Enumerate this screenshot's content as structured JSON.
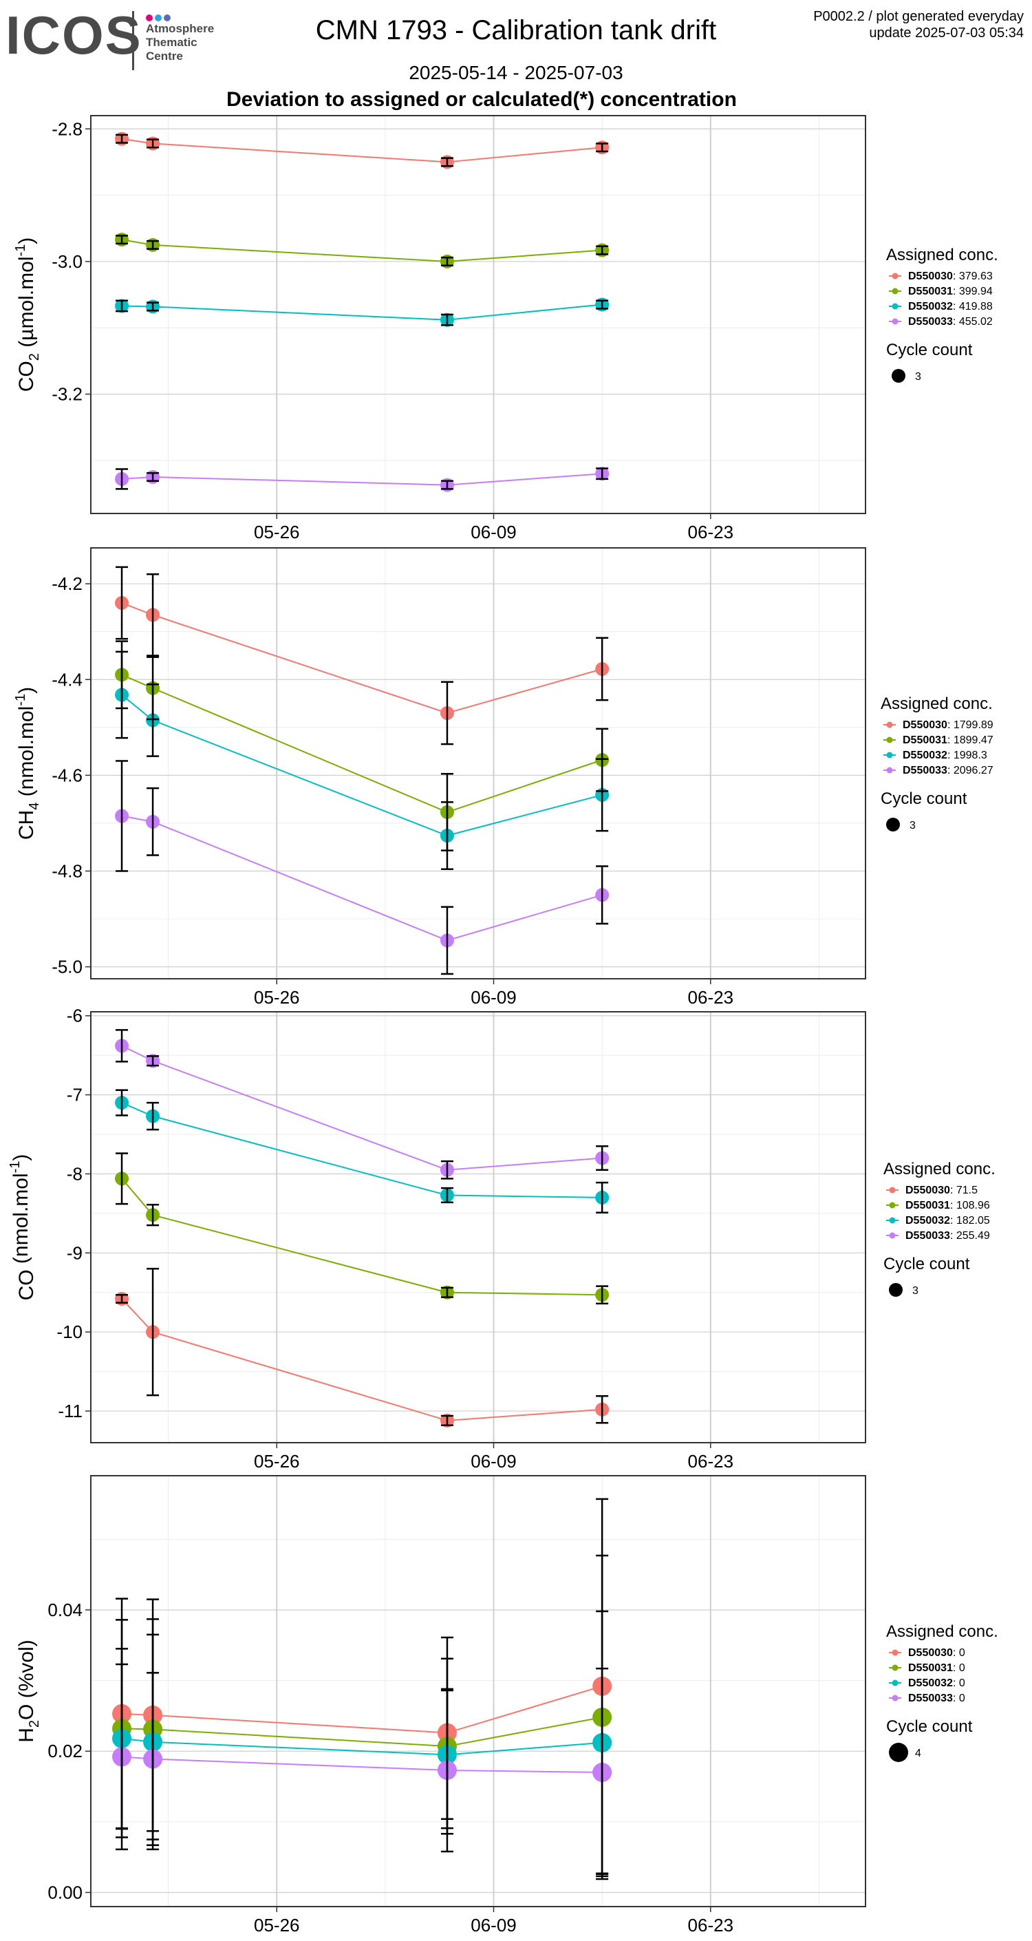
{
  "logo": {
    "name": "ICOS",
    "dots": [
      "#e5007e",
      "#26a6e0",
      "#5a6bb8"
    ],
    "lines": [
      "Atmosphere",
      "Thematic",
      "Centre"
    ]
  },
  "title": "CMN 1793 - Calibration tank drift",
  "subtitle": "2025-05-14 - 2025-07-03",
  "heading": "Deviation to assigned or calculated(*) concentration",
  "meta": {
    "line1": "P0002.2 / plot generated everyday",
    "line2": "update  2025-07-03 05:34"
  },
  "colors": {
    "D550030": "#f8766d",
    "D550031": "#7cae00",
    "D550032": "#00bfc4",
    "D550033": "#c77cff",
    "errorbar": "#000000",
    "grid_major": "#cfcfcf",
    "grid_minor": "#ececec"
  },
  "chart_data": [
    {
      "type": "line",
      "ylabel_main": "CO",
      "ylabel_sub": "2",
      "ylabel_rest": " (µmol.mol",
      "ylabel_sup": "-1",
      "ylabel_end": ")",
      "x": [
        "2025-05-16",
        "2025-05-18",
        "2025-06-06",
        "2025-06-16"
      ],
      "xlim": [
        "2025-05-14",
        "2025-07-03"
      ],
      "x_ticks": [
        "05-26",
        "06-09",
        "06-23"
      ],
      "x_tick_dates": [
        "2025-05-26",
        "2025-06-09",
        "2025-06-23"
      ],
      "ylim": [
        -3.38,
        -2.78
      ],
      "y_ticks": [
        -2.8,
        -3.0,
        -3.2
      ],
      "y_tick_labels": [
        "-2.8",
        "-3.0",
        "-3.2"
      ],
      "point_size": 3,
      "series": [
        {
          "name": "D550030",
          "conc": "379.63",
          "values": [
            -2.815,
            -2.822,
            -2.85,
            -2.828
          ],
          "err": [
            0.006,
            0.006,
            0.006,
            0.006
          ]
        },
        {
          "name": "D550031",
          "conc": "399.94",
          "values": [
            -2.967,
            -2.975,
            -3.0,
            -2.983
          ],
          "err": [
            0.006,
            0.006,
            0.006,
            0.006
          ]
        },
        {
          "name": "D550032",
          "conc": "419.88",
          "values": [
            -3.067,
            -3.068,
            -3.088,
            -3.065
          ],
          "err": [
            0.008,
            0.006,
            0.008,
            0.006
          ]
        },
        {
          "name": "D550033",
          "conc": "455.02",
          "values": [
            -3.328,
            -3.325,
            -3.337,
            -3.32
          ],
          "err": [
            0.015,
            0.006,
            0.006,
            0.008
          ]
        }
      ],
      "legend_title": "Assigned conc.",
      "size_title": "Cycle count",
      "size_label": "3"
    },
    {
      "type": "line",
      "ylabel_main": "CH",
      "ylabel_sub": "4",
      "ylabel_rest": " (nmol.mol",
      "ylabel_sup": "-1",
      "ylabel_end": ")",
      "x": [
        "2025-05-16",
        "2025-05-18",
        "2025-06-06",
        "2025-06-16"
      ],
      "xlim": [
        "2025-05-14",
        "2025-07-03"
      ],
      "x_ticks": [
        "05-26",
        "06-09",
        "06-23"
      ],
      "x_tick_dates": [
        "2025-05-26",
        "2025-06-09",
        "2025-06-23"
      ],
      "ylim": [
        -5.025,
        -4.125
      ],
      "y_ticks": [
        -4.2,
        -4.4,
        -4.6,
        -4.8,
        -5.0
      ],
      "y_tick_labels": [
        "-4.2",
        "-4.4",
        "-4.6",
        "-4.8",
        "-5.0"
      ],
      "point_size": 3,
      "series": [
        {
          "name": "D550030",
          "conc": "1799.89",
          "values": [
            -4.24,
            -4.265,
            -4.47,
            -4.378
          ],
          "err": [
            0.075,
            0.085,
            0.065,
            0.065
          ]
        },
        {
          "name": "D550031",
          "conc": "1899.47",
          "values": [
            -4.39,
            -4.418,
            -4.677,
            -4.568
          ],
          "err": [
            0.07,
            0.065,
            0.08,
            0.065
          ]
        },
        {
          "name": "D550032",
          "conc": "1998.3",
          "values": [
            -4.432,
            -4.485,
            -4.726,
            -4.641
          ],
          "err": [
            0.09,
            0.075,
            0.07,
            0.075
          ]
        },
        {
          "name": "D550033",
          "conc": "2096.27",
          "values": [
            -4.685,
            -4.697,
            -4.945,
            -4.85
          ],
          "err": [
            0.115,
            0.07,
            0.07,
            0.06
          ]
        }
      ],
      "legend_title": "Assigned conc.",
      "size_title": "Cycle count",
      "size_label": "3"
    },
    {
      "type": "line",
      "ylabel_main": "CO",
      "ylabel_sub": "",
      "ylabel_rest": " (nmol.mol",
      "ylabel_sup": "-1",
      "ylabel_end": ")",
      "x": [
        "2025-05-16",
        "2025-05-18",
        "2025-06-06",
        "2025-06-16"
      ],
      "xlim": [
        "2025-05-14",
        "2025-07-03"
      ],
      "x_ticks": [
        "05-26",
        "06-09",
        "06-23"
      ],
      "x_tick_dates": [
        "2025-05-26",
        "2025-06-09",
        "2025-06-23"
      ],
      "ylim": [
        -11.4,
        -5.95
      ],
      "y_ticks": [
        -6,
        -7,
        -8,
        -9,
        -10,
        -11
      ],
      "y_tick_labels": [
        "-6",
        "-7",
        "-8",
        "-9",
        "-10",
        "-11"
      ],
      "point_size": 3,
      "series": [
        {
          "name": "D550030",
          "conc": "71.5",
          "values": [
            -9.58,
            -10.0,
            -11.12,
            -10.98
          ],
          "err": [
            0.05,
            0.8,
            0.06,
            0.17
          ]
        },
        {
          "name": "D550031",
          "conc": "108.96",
          "values": [
            -8.06,
            -8.52,
            -9.5,
            -9.53
          ],
          "err": [
            0.32,
            0.13,
            0.06,
            0.11
          ]
        },
        {
          "name": "D550032",
          "conc": "182.05",
          "values": [
            -7.1,
            -7.27,
            -8.27,
            -8.3
          ],
          "err": [
            0.16,
            0.17,
            0.09,
            0.19
          ]
        },
        {
          "name": "D550033",
          "conc": "255.49",
          "values": [
            -6.38,
            -6.57,
            -7.95,
            -7.8
          ],
          "err": [
            0.2,
            0.06,
            0.11,
            0.15
          ]
        }
      ],
      "legend_title": "Assigned conc.",
      "size_title": "Cycle count",
      "size_label": "3"
    },
    {
      "type": "line",
      "ylabel_main": "H",
      "ylabel_sub": "2",
      "ylabel_rest": "O (%vol)",
      "ylabel_sup": "",
      "ylabel_end": "",
      "x": [
        "2025-05-16",
        "2025-05-18",
        "2025-06-06",
        "2025-06-16"
      ],
      "xlim": [
        "2025-05-14",
        "2025-07-03"
      ],
      "x_ticks": [
        "05-26",
        "06-09",
        "06-23"
      ],
      "x_tick_dates": [
        "2025-05-26",
        "2025-06-09",
        "2025-06-23"
      ],
      "ylim": [
        -0.002,
        0.059
      ],
      "y_ticks": [
        0.0,
        0.02,
        0.04
      ],
      "y_tick_labels": [
        "0.00",
        "0.02",
        "0.04"
      ],
      "point_size": 4,
      "series": [
        {
          "name": "D550030",
          "conc": "0",
          "values": [
            0.0253,
            0.0251,
            0.0226,
            0.0292
          ],
          "err": [
            0.0163,
            0.0164,
            0.0135,
            0.0265
          ]
        },
        {
          "name": "D550031",
          "conc": "0",
          "values": [
            0.0232,
            0.0231,
            0.0207,
            0.0248
          ],
          "err": [
            0.0154,
            0.0156,
            0.0124,
            0.0229
          ]
        },
        {
          "name": "D550032",
          "conc": "0",
          "values": [
            0.0218,
            0.0213,
            0.0195,
            0.0212
          ],
          "err": [
            0.0127,
            0.0152,
            0.0091,
            0.0186
          ]
        },
        {
          "name": "D550033",
          "conc": "0",
          "values": [
            0.0192,
            0.0189,
            0.0173,
            0.017
          ],
          "err": [
            0.0131,
            0.0122,
            0.0115,
            0.0147
          ]
        }
      ],
      "legend_title": "Assigned conc.",
      "size_title": "Cycle count",
      "size_label": "4"
    }
  ]
}
